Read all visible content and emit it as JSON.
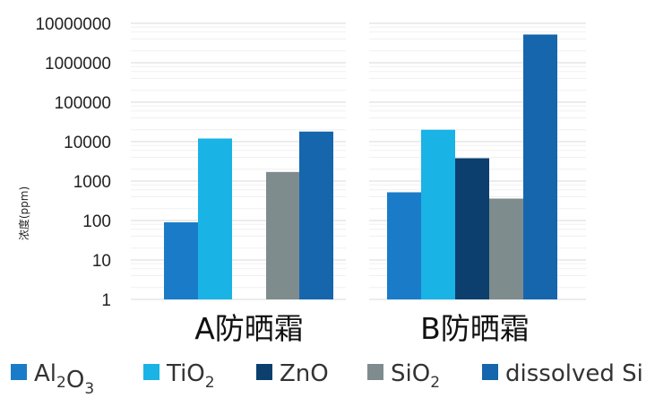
{
  "chart_data": {
    "type": "bar",
    "yscale": "log",
    "ylim": [
      1,
      10000000
    ],
    "yticks": [
      "1",
      "10",
      "100",
      "1000",
      "10000",
      "100000",
      "1000000",
      "10000000"
    ],
    "ylabel": "浓度(ppm)",
    "categories": [
      "A防晒霜",
      "B防晒霜"
    ],
    "series": [
      {
        "name": "Al2O3",
        "label_main": [
          "Al",
          "O"
        ],
        "label_sub": [
          "2",
          "3"
        ],
        "color": "#1a7cc8",
        "values": [
          90,
          520
        ]
      },
      {
        "name": "TiO2",
        "label_main": [
          "TiO"
        ],
        "label_sub": [
          "2"
        ],
        "color": "#19b3e6",
        "values": [
          12000,
          20000
        ]
      },
      {
        "name": "ZnO",
        "label_main": [
          "ZnO"
        ],
        "label_sub": [],
        "color": "#0c3f6e",
        "values": [
          null,
          3800
        ]
      },
      {
        "name": "SiO2",
        "label_main": [
          "SiO"
        ],
        "label_sub": [
          "2"
        ],
        "color": "#7f8c8d",
        "values": [
          1700,
          360
        ]
      },
      {
        "name": "dissolved Si",
        "label_main": [
          "dissolved Si"
        ],
        "label_sub": [],
        "color": "#1566ad",
        "values": [
          18000,
          5200000
        ]
      }
    ],
    "grid": true,
    "legend_position": "bottom"
  }
}
